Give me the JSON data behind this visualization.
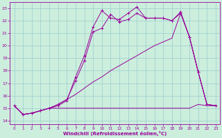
{
  "x": [
    0,
    1,
    2,
    3,
    4,
    5,
    6,
    7,
    8,
    9,
    10,
    11,
    12,
    13,
    14,
    15,
    16,
    17,
    18,
    19,
    20,
    21,
    22,
    23
  ],
  "line_jagged1": [
    15.2,
    14.5,
    14.6,
    14.8,
    15.0,
    15.3,
    15.7,
    17.2,
    18.8,
    21.1,
    21.4,
    22.5,
    21.9,
    22.1,
    22.6,
    22.2,
    22.2,
    22.2,
    22.0,
    22.6,
    20.7,
    17.9,
    15.3,
    15.2
  ],
  "line_jagged2": [
    15.2,
    14.5,
    14.6,
    14.8,
    15.0,
    15.2,
    15.6,
    17.5,
    19.2,
    21.5,
    22.8,
    22.2,
    22.1,
    22.6,
    23.1,
    22.2,
    22.2,
    22.2,
    22.0,
    22.7,
    20.7,
    17.9,
    15.3,
    15.2
  ],
  "line_diag_high": [
    15.2,
    14.5,
    14.6,
    14.8,
    15.0,
    15.3,
    15.7,
    16.1,
    16.6,
    17.1,
    17.5,
    18.0,
    18.4,
    18.8,
    19.2,
    19.6,
    20.0,
    20.3,
    20.6,
    22.6,
    20.7,
    17.9,
    15.3,
    15.2
  ],
  "line_flat": [
    15.2,
    14.5,
    14.6,
    14.8,
    15.0,
    15.0,
    15.0,
    15.0,
    15.0,
    15.0,
    15.0,
    15.0,
    15.0,
    15.0,
    15.0,
    15.0,
    15.0,
    15.0,
    15.0,
    15.0,
    15.0,
    15.3,
    15.2,
    15.2
  ],
  "color": "#990099",
  "bg_color": "#cceedd",
  "grid_color": "#99cccc",
  "yticks": [
    14,
    15,
    16,
    17,
    18,
    19,
    20,
    21,
    22,
    23
  ],
  "xlabel": "Windchill (Refroidissement éolien,°C)",
  "xlim": [
    -0.5,
    23.5
  ],
  "ylim": [
    13.7,
    23.5
  ]
}
